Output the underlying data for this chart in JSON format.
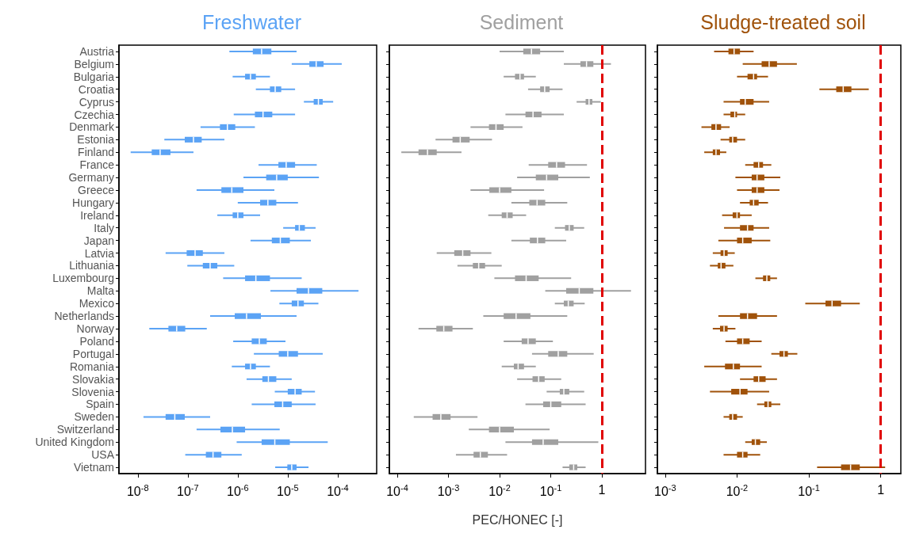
{
  "chart_data": [
    {
      "type": "box",
      "orientation": "horizontal",
      "title": "Freshwater",
      "log": "x",
      "xlim": [
        4.2e-09,
        0.0006
      ],
      "xticks": [
        {
          "value": 1e-08,
          "label": "10$^{-8}$"
        },
        {
          "value": 1e-07,
          "label": "10$^{-7}$"
        },
        {
          "value": 1e-06,
          "label": "10$^{-6}$"
        },
        {
          "value": 1e-05,
          "label": "10$^{-5}$"
        },
        {
          "value": 0.0001,
          "label": "10$^{-4}$"
        }
      ],
      "categories": [
        "Austria",
        "Belgium",
        "Bulgaria",
        "Croatia",
        "Cyprus",
        "Czechia",
        "Denmark",
        "Estonia",
        "Finland",
        "France",
        "Germany",
        "Greece",
        "Hungary",
        "Ireland",
        "Italy",
        "Japan",
        "Latvia",
        "Lithuania",
        "Luxembourg",
        "Malta",
        "Mexico",
        "Netherlands",
        "Norway",
        "Poland",
        "Portugal",
        "Romania",
        "Slovakia",
        "Slovenia",
        "Spain",
        "Sweden",
        "Switzerland",
        "United Kingdom",
        "USA",
        "Vietnam"
      ],
      "series": [
        {
          "color": "#5ba3f5",
          "boxes": [
            {
              "low": 6.8e-07,
              "q1": 2e-06,
              "median": 3e-06,
              "q3": 4.7e-06,
              "high": 1.5e-05
            },
            {
              "low": 1.2e-05,
              "q1": 2.7e-05,
              "median": 3.7e-05,
              "q3": 5.2e-05,
              "high": 0.00012
            },
            {
              "low": 7.9e-07,
              "q1": 1.4e-06,
              "median": 1.8e-06,
              "q3": 2.3e-06,
              "high": 4.4e-06
            },
            {
              "low": 2.3e-06,
              "q1": 4.4e-06,
              "median": 5.6e-06,
              "q3": 7.4e-06,
              "high": 1.4e-05
            },
            {
              "low": 2.1e-05,
              "q1": 3.3e-05,
              "median": 4.1e-05,
              "q3": 5e-05,
              "high": 8.1e-05
            },
            {
              "low": 8.3e-07,
              "q1": 2.2e-06,
              "median": 3.2e-06,
              "q3": 4.9e-06,
              "high": 1.4e-05
            },
            {
              "low": 1.8e-07,
              "q1": 4.4e-07,
              "median": 6.2e-07,
              "q3": 8.9e-07,
              "high": 2.2e-06
            },
            {
              "low": 3.4e-08,
              "q1": 8.7e-08,
              "median": 1.3e-07,
              "q3": 1.9e-07,
              "high": 5.4e-07
            },
            {
              "low": 7.2e-09,
              "q1": 1.9e-08,
              "median": 2.8e-08,
              "q3": 4.5e-08,
              "high": 1.3e-07
            },
            {
              "low": 2.6e-06,
              "q1": 6.5e-06,
              "median": 9.3e-06,
              "q3": 1.4e-05,
              "high": 3.8e-05
            },
            {
              "low": 1.3e-06,
              "q1": 3.7e-06,
              "median": 6e-06,
              "q3": 1e-05,
              "high": 4.2e-05
            },
            {
              "low": 1.5e-07,
              "q1": 4.7e-07,
              "median": 7.6e-07,
              "q3": 1.3e-06,
              "high": 5.4e-06
            },
            {
              "low": 1e-06,
              "q1": 2.8e-06,
              "median": 4e-06,
              "q3": 5.9e-06,
              "high": 1.6e-05
            },
            {
              "low": 3.9e-07,
              "q1": 7.9e-07,
              "median": 1e-06,
              "q3": 1.3e-06,
              "high": 2.8e-06
            },
            {
              "low": 8.1e-06,
              "q1": 1.4e-05,
              "median": 1.7e-05,
              "q3": 2.2e-05,
              "high": 3.6e-05
            },
            {
              "low": 1.8e-06,
              "q1": 4.8e-06,
              "median": 7.1e-06,
              "q3": 1.1e-05,
              "high": 2.9e-05
            },
            {
              "low": 3.6e-08,
              "q1": 9.5e-08,
              "median": 1.4e-07,
              "q3": 2e-07,
              "high": 5.4e-07
            },
            {
              "low": 9.8e-08,
              "q1": 2e-07,
              "median": 2.8e-07,
              "q3": 3.9e-07,
              "high": 8.5e-07
            },
            {
              "low": 5.1e-07,
              "q1": 1.4e-06,
              "median": 2.3e-06,
              "q3": 4.4e-06,
              "high": 1.9e-05
            },
            {
              "low": 4.5e-06,
              "q1": 1.5e-05,
              "median": 2.6e-05,
              "q3": 4.9e-05,
              "high": 0.00026
            },
            {
              "low": 6.8e-06,
              "q1": 1.2e-05,
              "median": 1.6e-05,
              "q3": 2.1e-05,
              "high": 4.1e-05
            },
            {
              "low": 2.8e-07,
              "q1": 8.7e-07,
              "median": 1.5e-06,
              "q3": 2.9e-06,
              "high": 1.5e-05
            },
            {
              "low": 1.7e-08,
              "q1": 4.1e-08,
              "median": 6e-08,
              "q3": 8.9e-08,
              "high": 2.4e-07
            },
            {
              "low": 8.1e-07,
              "q1": 1.9e-06,
              "median": 2.7e-06,
              "q3": 3.8e-06,
              "high": 9e-06
            },
            {
              "low": 2.1e-06,
              "q1": 6.6e-06,
              "median": 1e-05,
              "q3": 1.6e-05,
              "high": 5e-05
            },
            {
              "low": 7.6e-07,
              "q1": 1.4e-06,
              "median": 1.8e-06,
              "q3": 2.3e-06,
              "high": 4.4e-06
            },
            {
              "low": 1.5e-06,
              "q1": 3.1e-06,
              "median": 4.1e-06,
              "q3": 5.9e-06,
              "high": 1.2e-05
            },
            {
              "low": 5.5e-06,
              "q1": 1e-05,
              "median": 1.4e-05,
              "q3": 1.9e-05,
              "high": 3.5e-05
            },
            {
              "low": 1.9e-06,
              "q1": 5.4e-06,
              "median": 7.9e-06,
              "q3": 1.2e-05,
              "high": 3.6e-05
            },
            {
              "low": 1.3e-08,
              "q1": 3.6e-08,
              "median": 5.5e-08,
              "q3": 8.7e-08,
              "high": 2.8e-07
            },
            {
              "low": 1.5e-07,
              "q1": 4.5e-07,
              "median": 7.8e-07,
              "q3": 1.4e-06,
              "high": 6.9e-06
            },
            {
              "low": 9.5e-07,
              "q1": 3e-06,
              "median": 5.5e-06,
              "q3": 1.1e-05,
              "high": 6.3e-05
            },
            {
              "low": 8.9e-08,
              "q1": 2.3e-07,
              "median": 3.2e-07,
              "q3": 4.7e-07,
              "high": 1.2e-06
            },
            {
              "low": 5.6e-06,
              "q1": 9.8e-06,
              "median": 1.2e-05,
              "q3": 1.5e-05,
              "high": 2.6e-05
            }
          ]
        }
      ]
    },
    {
      "type": "box",
      "orientation": "horizontal",
      "title": "Sediment",
      "xlabel": "PEC/HONEC [-]",
      "tick_labels": "x",
      "log": "x",
      "xlim": [
        7e-05,
        7.1
      ],
      "xticks": [
        {
          "value": 0.0001,
          "label": "10$^{-4}$"
        },
        {
          "value": 0.001,
          "label": "10$^{-3}$"
        },
        {
          "value": 0.01,
          "label": "10$^{-2}$"
        },
        {
          "value": 0.1,
          "label": "10$^{-1}$"
        },
        1
      ],
      "ref_lines": [
        {
          "axis": "x",
          "value": 1,
          "color": "#e00000",
          "line_style": "dashed"
        }
      ],
      "series": [
        {
          "color": "#a0a0a0",
          "boxes": [
            {
              "low": 0.01,
              "q1": 0.029,
              "median": 0.042,
              "q3": 0.062,
              "high": 0.18
            },
            {
              "low": 0.18,
              "q1": 0.38,
              "median": 0.5,
              "q3": 0.68,
              "high": 1.5
            },
            {
              "low": 0.012,
              "q1": 0.02,
              "median": 0.025,
              "q3": 0.03,
              "high": 0.051
            },
            {
              "low": 0.036,
              "q1": 0.062,
              "median": 0.076,
              "q3": 0.095,
              "high": 0.17
            },
            {
              "low": 0.32,
              "q1": 0.48,
              "median": 0.56,
              "q3": 0.65,
              "high": 0.95
            },
            {
              "low": 0.013,
              "q1": 0.032,
              "median": 0.045,
              "q3": 0.066,
              "high": 0.18
            },
            {
              "low": 0.0027,
              "q1": 0.0062,
              "median": 0.0085,
              "q3": 0.012,
              "high": 0.028
            },
            {
              "low": 0.00056,
              "q1": 0.0012,
              "median": 0.0017,
              "q3": 0.0026,
              "high": 0.0071
            },
            {
              "low": 0.00012,
              "q1": 0.00026,
              "median": 0.00039,
              "q3": 0.00059,
              "high": 0.0018
            },
            {
              "low": 0.037,
              "q1": 0.089,
              "median": 0.13,
              "q3": 0.19,
              "high": 0.51
            },
            {
              "low": 0.022,
              "q1": 0.051,
              "median": 0.083,
              "q3": 0.14,
              "high": 0.58
            },
            {
              "low": 0.0027,
              "q1": 0.0063,
              "median": 0.01,
              "q3": 0.017,
              "high": 0.074
            },
            {
              "low": 0.017,
              "q1": 0.038,
              "median": 0.054,
              "q3": 0.078,
              "high": 0.21
            },
            {
              "low": 0.006,
              "q1": 0.011,
              "median": 0.014,
              "q3": 0.018,
              "high": 0.033
            },
            {
              "low": 0.12,
              "q1": 0.19,
              "median": 0.23,
              "q3": 0.28,
              "high": 0.45
            },
            {
              "low": 0.017,
              "q1": 0.039,
              "median": 0.055,
              "q3": 0.078,
              "high": 0.2
            },
            {
              "low": 0.00059,
              "q1": 0.0013,
              "median": 0.0019,
              "q3": 0.0027,
              "high": 0.0069
            },
            {
              "low": 0.0015,
              "q1": 0.003,
              "median": 0.0039,
              "q3": 0.0052,
              "high": 0.011
            },
            {
              "low": 0.0079,
              "q1": 0.02,
              "median": 0.033,
              "q3": 0.058,
              "high": 0.25
            },
            {
              "low": 0.078,
              "q1": 0.2,
              "median": 0.36,
              "q3": 0.68,
              "high": 3.7
            },
            {
              "low": 0.12,
              "q1": 0.18,
              "median": 0.22,
              "q3": 0.28,
              "high": 0.46
            },
            {
              "low": 0.0048,
              "q1": 0.012,
              "median": 0.021,
              "q3": 0.04,
              "high": 0.21
            },
            {
              "low": 0.00026,
              "q1": 0.00058,
              "median": 0.00081,
              "q3": 0.0012,
              "high": 0.003
            },
            {
              "low": 0.012,
              "q1": 0.027,
              "median": 0.036,
              "q3": 0.051,
              "high": 0.11
            },
            {
              "low": 0.043,
              "q1": 0.089,
              "median": 0.14,
              "q3": 0.21,
              "high": 0.69
            },
            {
              "low": 0.011,
              "q1": 0.019,
              "median": 0.023,
              "q3": 0.03,
              "high": 0.051
            },
            {
              "low": 0.022,
              "q1": 0.044,
              "median": 0.058,
              "q3": 0.076,
              "high": 0.16
            },
            {
              "low": 0.083,
              "q1": 0.15,
              "median": 0.18,
              "q3": 0.23,
              "high": 0.45
            },
            {
              "low": 0.032,
              "q1": 0.071,
              "median": 0.1,
              "q3": 0.16,
              "high": 0.48
            },
            {
              "low": 0.00021,
              "q1": 0.00049,
              "median": 0.00071,
              "q3": 0.0011,
              "high": 0.0037
            },
            {
              "low": 0.0025,
              "q1": 0.0062,
              "median": 0.01,
              "q3": 0.019,
              "high": 0.095
            },
            {
              "low": 0.013,
              "q1": 0.043,
              "median": 0.071,
              "q3": 0.14,
              "high": 0.85
            },
            {
              "low": 0.0014,
              "q1": 0.0031,
              "median": 0.0042,
              "q3": 0.0059,
              "high": 0.014
            },
            {
              "low": 0.17,
              "q1": 0.23,
              "median": 0.28,
              "q3": 0.33,
              "high": 0.48
            }
          ]
        }
      ]
    },
    {
      "type": "box",
      "orientation": "horizontal",
      "title": "Sludge-treated soil",
      "tick_labels": "x",
      "log": "x",
      "xlim": [
        0.00078,
        1.9
      ],
      "xticks": [
        {
          "value": 0.001,
          "label": "10$^{-3}$"
        },
        {
          "value": 0.01,
          "label": "10$^{-2}$"
        },
        {
          "value": 0.1,
          "label": "10$^{-1}$"
        },
        1
      ],
      "ref_lines": [
        {
          "axis": "x",
          "value": 1,
          "color": "#e00000",
          "line_style": "dashed"
        }
      ],
      "series": [
        {
          "color": "#a0520a",
          "boxes": [
            {
              "low": 0.0048,
              "q1": 0.0076,
              "median": 0.0091,
              "q3": 0.011,
              "high": 0.017
            },
            {
              "low": 0.012,
              "q1": 0.022,
              "median": 0.028,
              "q3": 0.036,
              "high": 0.068
            },
            {
              "low": 0.01,
              "q1": 0.014,
              "median": 0.017,
              "q3": 0.019,
              "high": 0.027
            },
            {
              "low": 0.14,
              "q1": 0.24,
              "median": 0.3,
              "q3": 0.39,
              "high": 0.68
            },
            {
              "low": 0.0065,
              "q1": 0.011,
              "median": 0.013,
              "q3": 0.017,
              "high": 0.028
            },
            {
              "low": 0.0065,
              "q1": 0.0081,
              "median": 0.0093,
              "q3": 0.01,
              "high": 0.013
            },
            {
              "low": 0.0032,
              "q1": 0.0044,
              "median": 0.0051,
              "q3": 0.006,
              "high": 0.0079
            },
            {
              "low": 0.0059,
              "q1": 0.0078,
              "median": 0.0087,
              "q3": 0.01,
              "high": 0.013
            },
            {
              "low": 0.0035,
              "q1": 0.0046,
              "median": 0.0051,
              "q3": 0.0058,
              "high": 0.0071
            },
            {
              "low": 0.013,
              "q1": 0.017,
              "median": 0.02,
              "q3": 0.023,
              "high": 0.03
            },
            {
              "low": 0.0095,
              "q1": 0.016,
              "median": 0.019,
              "q3": 0.024,
              "high": 0.04
            },
            {
              "low": 0.01,
              "q1": 0.016,
              "median": 0.019,
              "q3": 0.024,
              "high": 0.039
            },
            {
              "low": 0.011,
              "q1": 0.015,
              "median": 0.017,
              "q3": 0.02,
              "high": 0.027
            },
            {
              "low": 0.0062,
              "q1": 0.0087,
              "median": 0.01,
              "q3": 0.011,
              "high": 0.016
            },
            {
              "low": 0.0066,
              "q1": 0.011,
              "median": 0.014,
              "q3": 0.017,
              "high": 0.028
            },
            {
              "low": 0.0055,
              "q1": 0.01,
              "median": 0.012,
              "q3": 0.016,
              "high": 0.029
            },
            {
              "low": 0.0046,
              "q1": 0.0059,
              "median": 0.0066,
              "q3": 0.0074,
              "high": 0.0093
            },
            {
              "low": 0.0042,
              "q1": 0.0054,
              "median": 0.006,
              "q3": 0.0069,
              "high": 0.0089
            },
            {
              "low": 0.018,
              "q1": 0.023,
              "median": 0.026,
              "q3": 0.029,
              "high": 0.036
            },
            null,
            {
              "low": 0.089,
              "q1": 0.17,
              "median": 0.21,
              "q3": 0.28,
              "high": 0.51
            },
            {
              "low": 0.0055,
              "q1": 0.011,
              "median": 0.014,
              "q3": 0.019,
              "high": 0.036
            },
            {
              "low": 0.0046,
              "q1": 0.0058,
              "median": 0.0066,
              "q3": 0.0074,
              "high": 0.0095
            },
            {
              "low": 0.0069,
              "q1": 0.01,
              "median": 0.012,
              "q3": 0.015,
              "high": 0.022
            },
            {
              "low": 0.03,
              "q1": 0.039,
              "median": 0.045,
              "q3": 0.051,
              "high": 0.069
            },
            {
              "low": 0.0035,
              "q1": 0.0068,
              "median": 0.0089,
              "q3": 0.011,
              "high": 0.022
            },
            {
              "low": 0.011,
              "q1": 0.017,
              "median": 0.02,
              "q3": 0.025,
              "high": 0.036
            },
            {
              "low": 0.0042,
              "q1": 0.0083,
              "median": 0.011,
              "q3": 0.014,
              "high": 0.028
            },
            {
              "low": 0.019,
              "q1": 0.024,
              "median": 0.027,
              "q3": 0.03,
              "high": 0.04
            },
            {
              "low": 0.0065,
              "q1": 0.0078,
              "median": 0.0087,
              "q3": 0.01,
              "high": 0.012
            },
            null,
            {
              "low": 0.013,
              "q1": 0.016,
              "median": 0.018,
              "q3": 0.021,
              "high": 0.026
            },
            {
              "low": 0.0065,
              "q1": 0.01,
              "median": 0.012,
              "q3": 0.014,
              "high": 0.021
            },
            {
              "low": 0.13,
              "q1": 0.28,
              "median": 0.38,
              "q3": 0.51,
              "high": 1.15
            }
          ]
        }
      ]
    }
  ]
}
